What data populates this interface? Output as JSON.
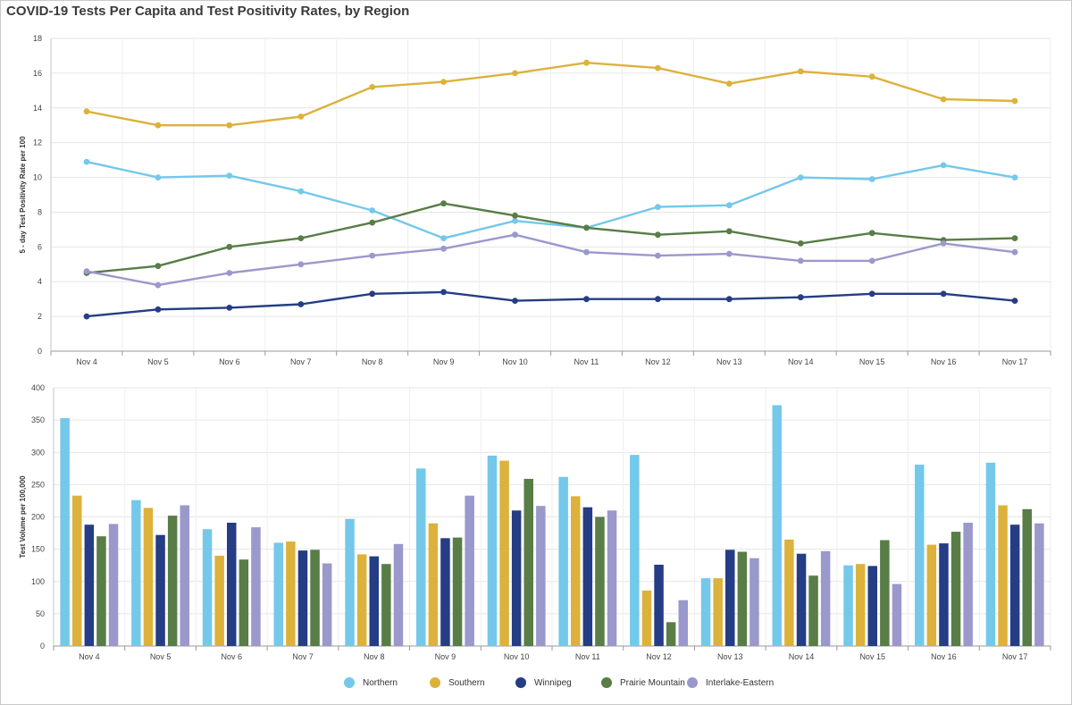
{
  "title": "COVID-19 Tests Per Capita and Test Positivity Rates, by Region",
  "legend": [
    {
      "name": "Northern",
      "color": "#74c8ea"
    },
    {
      "name": "Southern",
      "color": "#dcb23c"
    },
    {
      "name": "Winnipeg",
      "color": "#243d84"
    },
    {
      "name": "Prairie Mountain",
      "color": "#587d47"
    },
    {
      "name": "Interlake-Eastern",
      "color": "#9b98cc"
    }
  ],
  "chart_data": [
    {
      "type": "line",
      "title": "",
      "xlabel": "",
      "ylabel": "5 - day Test Positivity Rate per 100",
      "ylim": [
        0,
        18
      ],
      "yticks": [
        0,
        2,
        4,
        6,
        8,
        10,
        12,
        14,
        16,
        18
      ],
      "grid": true,
      "categories": [
        "Nov 4",
        "Nov 5",
        "Nov 6",
        "Nov 7",
        "Nov 8",
        "Nov 9",
        "Nov 10",
        "Nov 11",
        "Nov 12",
        "Nov 13",
        "Nov 14",
        "Nov 15",
        "Nov 16",
        "Nov 17"
      ],
      "series": [
        {
          "name": "Southern",
          "values": [
            13.8,
            13.0,
            13.0,
            13.5,
            15.2,
            15.5,
            16.0,
            16.6,
            16.3,
            15.4,
            16.1,
            15.8,
            14.5,
            14.4
          ]
        },
        {
          "name": "Northern",
          "values": [
            10.9,
            10.0,
            10.1,
            9.2,
            8.1,
            6.5,
            7.5,
            7.1,
            8.3,
            8.4,
            10.0,
            9.9,
            10.7,
            10.0
          ]
        },
        {
          "name": "Prairie Mountain",
          "values": [
            4.5,
            4.9,
            6.0,
            6.5,
            7.4,
            8.5,
            7.8,
            7.1,
            6.7,
            6.9,
            6.2,
            6.8,
            6.4,
            6.5
          ]
        },
        {
          "name": "Interlake-Eastern",
          "values": [
            4.6,
            3.8,
            4.5,
            5.0,
            5.5,
            5.9,
            6.7,
            5.7,
            5.5,
            5.6,
            5.2,
            5.2,
            6.2,
            5.7
          ]
        },
        {
          "name": "Winnipeg",
          "values": [
            2.0,
            2.4,
            2.5,
            2.7,
            3.3,
            3.4,
            2.9,
            3.0,
            3.0,
            3.0,
            3.1,
            3.3,
            3.3,
            2.9
          ]
        }
      ]
    },
    {
      "type": "bar",
      "title": "",
      "xlabel": "",
      "ylabel": "Test Volume per 100,000",
      "ylim": [
        0,
        400
      ],
      "yticks": [
        0,
        50,
        100,
        150,
        200,
        250,
        300,
        350,
        400
      ],
      "grid": true,
      "legend_position": "bottom",
      "categories": [
        "Nov 4",
        "Nov 5",
        "Nov 6",
        "Nov 7",
        "Nov 8",
        "Nov 9",
        "Nov 10",
        "Nov 11",
        "Nov 12",
        "Nov 13",
        "Nov 14",
        "Nov 15",
        "Nov 16",
        "Nov 17"
      ],
      "series": [
        {
          "name": "Northern",
          "values": [
            353,
            226,
            181,
            160,
            197,
            275,
            295,
            262,
            296,
            105,
            373,
            125,
            281,
            284
          ]
        },
        {
          "name": "Southern",
          "values": [
            233,
            214,
            140,
            162,
            142,
            190,
            287,
            232,
            86,
            105,
            165,
            127,
            157,
            218
          ]
        },
        {
          "name": "Winnipeg",
          "values": [
            188,
            172,
            191,
            148,
            139,
            167,
            210,
            215,
            126,
            149,
            143,
            124,
            159,
            188
          ]
        },
        {
          "name": "Prairie Mountain",
          "values": [
            170,
            202,
            134,
            149,
            127,
            168,
            259,
            200,
            37,
            146,
            109,
            164,
            177,
            212
          ]
        },
        {
          "name": "Interlake-Eastern",
          "values": [
            189,
            218,
            184,
            128,
            158,
            233,
            217,
            210,
            71,
            136,
            147,
            96,
            191,
            190
          ]
        }
      ]
    }
  ]
}
